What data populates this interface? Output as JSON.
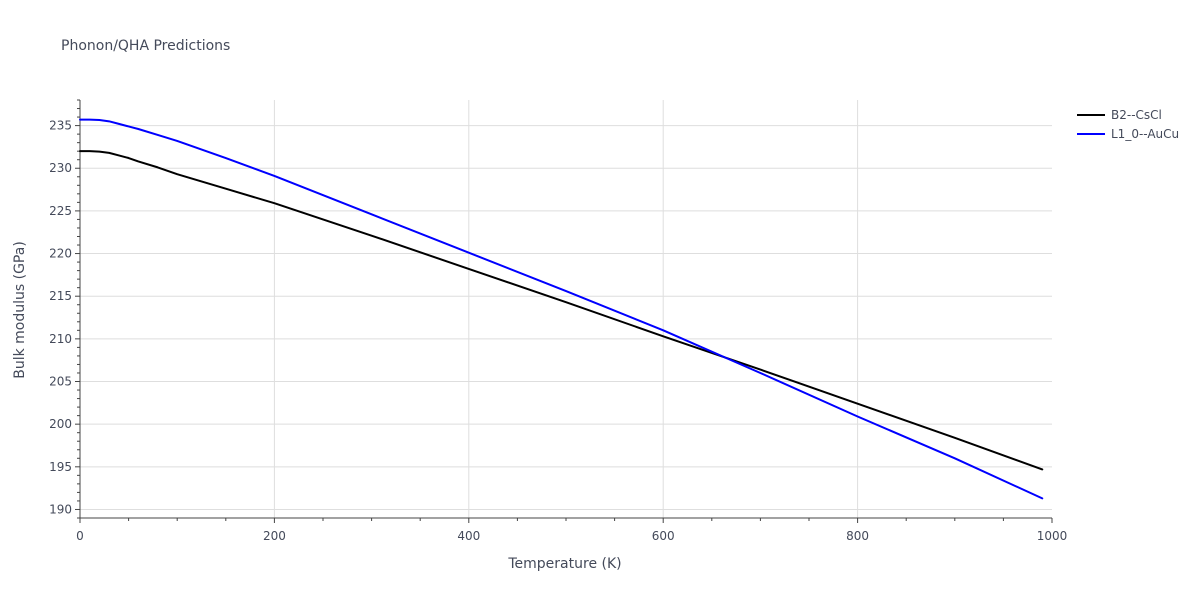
{
  "colors": {
    "background": "#ffffff",
    "grid": "#dedede",
    "axis": "#444444",
    "text": "#444a5a",
    "series_black": "#000000",
    "series_blue": "#0000ff"
  },
  "chart_data": {
    "type": "line",
    "title": "Phonon/QHA Predictions",
    "xlabel": "Temperature (K)",
    "ylabel": "Bulk modulus (GPa)",
    "xlim": [
      0,
      1000
    ],
    "ylim": [
      189,
      238
    ],
    "x_ticks": [
      0,
      200,
      400,
      600,
      800,
      1000
    ],
    "x_tick_labels": [
      "0",
      "200",
      "400",
      "600",
      "800",
      "1000"
    ],
    "y_ticks": [
      190,
      195,
      200,
      205,
      210,
      215,
      220,
      225,
      230,
      235
    ],
    "y_tick_labels": [
      "190",
      "195",
      "200",
      "205",
      "210",
      "215",
      "220",
      "225",
      "230",
      "235"
    ],
    "grid": true,
    "legend_position": "top-right",
    "series": [
      {
        "name": "B2--CsCl",
        "color": "#000000",
        "x": [
          0,
          10,
          20,
          30,
          40,
          50,
          60,
          80,
          100,
          150,
          200,
          300,
          400,
          500,
          600,
          700,
          800,
          900,
          990
        ],
        "y": [
          232.0,
          232.0,
          231.95,
          231.8,
          231.5,
          231.2,
          230.8,
          230.1,
          229.3,
          227.6,
          225.9,
          222.1,
          218.2,
          214.3,
          210.3,
          206.4,
          202.4,
          198.4,
          194.7
        ]
      },
      {
        "name": "L1_0--AuCu",
        "color": "#0000ff",
        "x": [
          0,
          10,
          20,
          30,
          40,
          50,
          60,
          80,
          100,
          150,
          200,
          300,
          400,
          500,
          600,
          700,
          800,
          900,
          990
        ],
        "y": [
          235.7,
          235.7,
          235.65,
          235.5,
          235.2,
          234.9,
          234.6,
          233.9,
          233.2,
          231.2,
          229.1,
          224.6,
          220.1,
          215.6,
          211.0,
          206.0,
          200.9,
          196.0,
          191.3
        ]
      }
    ]
  }
}
